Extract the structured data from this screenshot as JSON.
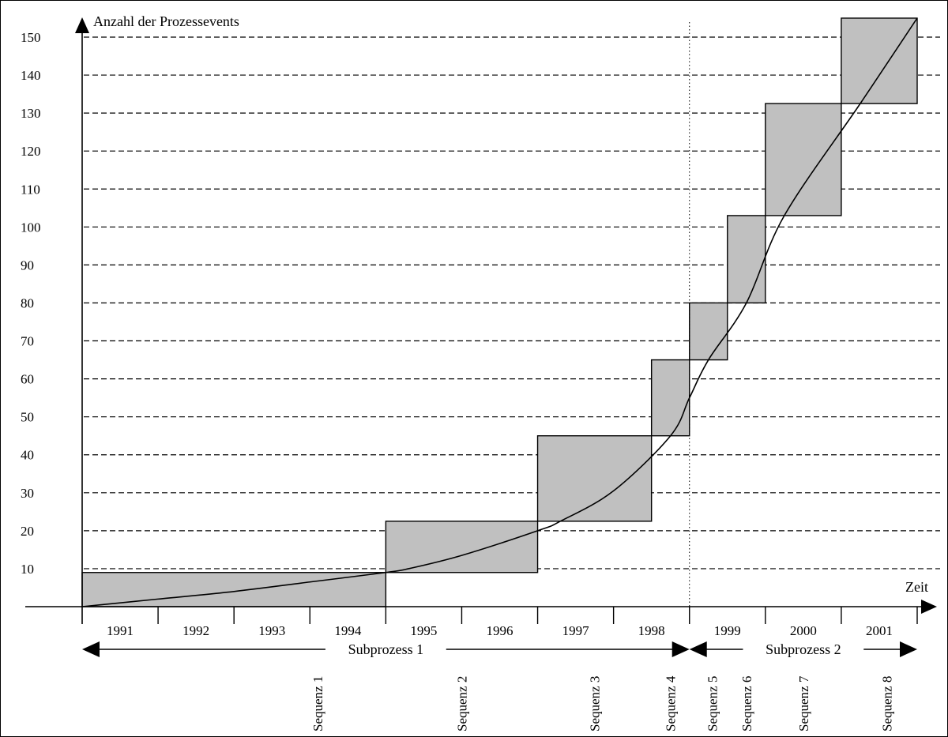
{
  "chart_data": {
    "type": "line",
    "ylabel": "Anzahl der Prozessevents",
    "xlabel": "Zeit",
    "ylim": [
      0,
      155
    ],
    "y_ticks": [
      10,
      20,
      30,
      40,
      50,
      60,
      70,
      80,
      90,
      100,
      110,
      120,
      130,
      140,
      150
    ],
    "grid": true,
    "years": [
      "1991",
      "1992",
      "1993",
      "1994",
      "1995",
      "1996",
      "1997",
      "1998",
      "1999",
      "2000",
      "2001"
    ],
    "xlim": [
      1990,
      2001
    ],
    "series": [
      {
        "x": [
          1990,
          1991,
          1992,
          1993,
          1994,
          1994.3,
          1995,
          1996,
          1996.3,
          1997,
          1997.75,
          1998,
          1998.25,
          1998.75,
          1999.25,
          2000.25,
          2001
        ],
        "y": [
          0,
          2,
          4,
          6.5,
          9,
          10,
          13.5,
          20,
          22.5,
          30.5,
          45,
          55,
          65,
          80,
          103,
          132.5,
          155
        ]
      }
    ],
    "sequences": [
      {
        "label": "Sequenz 1",
        "x0": 1990,
        "x1": 1994,
        "y0": 0,
        "y1": 9
      },
      {
        "label": "Sequenz 2",
        "x0": 1994,
        "x1": 1996,
        "y0": 9,
        "y1": 22.5
      },
      {
        "label": "Sequenz 3",
        "x0": 1996,
        "x1": 1997.5,
        "y0": 22.5,
        "y1": 45
      },
      {
        "label": "Sequenz 4",
        "x0": 1997.5,
        "x1": 1998,
        "y0": 45,
        "y1": 65
      },
      {
        "label": "Sequenz 5",
        "x0": 1998,
        "x1": 1998.5,
        "y0": 65,
        "y1": 80
      },
      {
        "label": "Sequenz 6",
        "x0": 1998.5,
        "x1": 1999,
        "y0": 80,
        "y1": 103
      },
      {
        "label": "Sequenz 7",
        "x0": 1999,
        "x1": 2000,
        "y0": 103,
        "y1": 132.5
      },
      {
        "label": "Sequenz 8",
        "x0": 2000,
        "x1": 2001,
        "y0": 132.5,
        "y1": 155
      }
    ],
    "subprocesses": [
      {
        "label": "Subprozess 1",
        "x0": 1990,
        "x1": 1998
      },
      {
        "label": "Subprozess 2",
        "x0": 1998,
        "x1": 2001
      }
    ],
    "divider_x": 1998
  }
}
